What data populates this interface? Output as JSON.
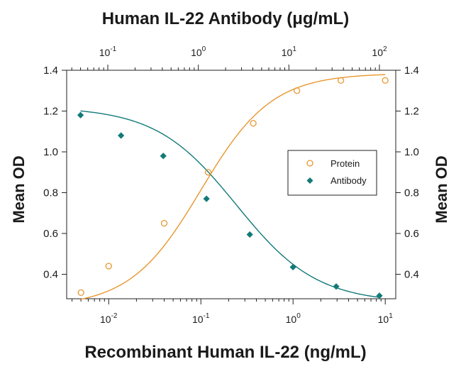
{
  "chart_data": {
    "type": "scatter",
    "title_top_axis": "Human IL-22 Antibody (μg/mL)",
    "xlabel": "Recombinant Human IL-22 (ng/mL)",
    "ylabel_left": "Mean OD",
    "ylabel_right": "Mean OD",
    "bottom_axis": {
      "scale": "log",
      "xlim": [
        0.0035,
        13
      ],
      "ticks": [
        {
          "value": 0.01,
          "base": "10",
          "exp": "-2"
        },
        {
          "value": 0.1,
          "base": "10",
          "exp": "-1"
        },
        {
          "value": 1,
          "base": "10",
          "exp": "0"
        },
        {
          "value": 10,
          "base": "10",
          "exp": "1"
        }
      ]
    },
    "top_axis": {
      "scale": "log",
      "ticks": [
        {
          "value": 0.1,
          "base": "10",
          "exp": "-1"
        },
        {
          "value": 1,
          "base": "10",
          "exp": "0"
        },
        {
          "value": 10,
          "base": "10",
          "exp": "1"
        },
        {
          "value": 100,
          "base": "10",
          "exp": "2"
        }
      ]
    },
    "y_axis": {
      "ylim": [
        0.28,
        1.4
      ],
      "ticks": [
        "0.4",
        "0.6",
        "0.8",
        "1.0",
        "1.2",
        "1.4"
      ]
    },
    "legend_position": "middle-right",
    "series": [
      {
        "name": "Protein",
        "axis": "bottom",
        "marker": "open-circle",
        "color": "#E8962E",
        "points": [
          [
            0.005,
            0.31
          ],
          [
            0.01,
            0.44
          ],
          [
            0.04,
            0.65
          ],
          [
            0.12,
            0.9
          ],
          [
            0.37,
            1.14
          ],
          [
            1.1,
            1.3
          ],
          [
            3.3,
            1.35
          ],
          [
            10,
            1.35
          ]
        ]
      },
      {
        "name": "Antibody",
        "axis": "top",
        "marker": "filled-diamond",
        "color": "#127A78",
        "points": [
          [
            0.05,
            1.18
          ],
          [
            0.14,
            1.08
          ],
          [
            0.41,
            0.98
          ],
          [
            1.23,
            0.77
          ],
          [
            3.7,
            0.595
          ],
          [
            11.1,
            0.435
          ],
          [
            33.3,
            0.34
          ],
          [
            100,
            0.295
          ]
        ]
      }
    ]
  }
}
